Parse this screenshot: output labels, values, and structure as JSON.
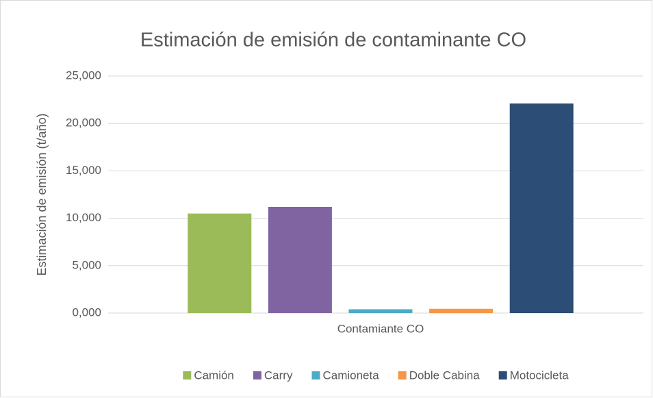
{
  "chart_data": {
    "type": "bar",
    "title": "Estimación de emisión de contaminante CO",
    "y_label": "Estimación de emisión (t/año)",
    "categories": [
      "Contamiante CO"
    ],
    "series": [
      {
        "name": "Camión",
        "color": "#9bbb59",
        "values": [
          10.5
        ]
      },
      {
        "name": "Carry",
        "color": "#8064a2",
        "values": [
          11.2
        ]
      },
      {
        "name": "Camioneta",
        "color": "#4bacc6",
        "values": [
          0.4
        ]
      },
      {
        "name": "Doble Cabina",
        "color": "#f79646",
        "values": [
          0.45
        ]
      },
      {
        "name": "Motocicleta",
        "color": "#2c4d75",
        "values": [
          22.1
        ]
      }
    ],
    "ylim": [
      0,
      25
    ],
    "yticks": [
      {
        "value": 0,
        "label": "0,000"
      },
      {
        "value": 5,
        "label": "5,000"
      },
      {
        "value": 10,
        "label": "10,000"
      },
      {
        "value": 15,
        "label": "15,000"
      },
      {
        "value": 20,
        "label": "20,000"
      },
      {
        "value": 25,
        "label": "25,000"
      }
    ],
    "grid": true,
    "legend": "bottom"
  }
}
